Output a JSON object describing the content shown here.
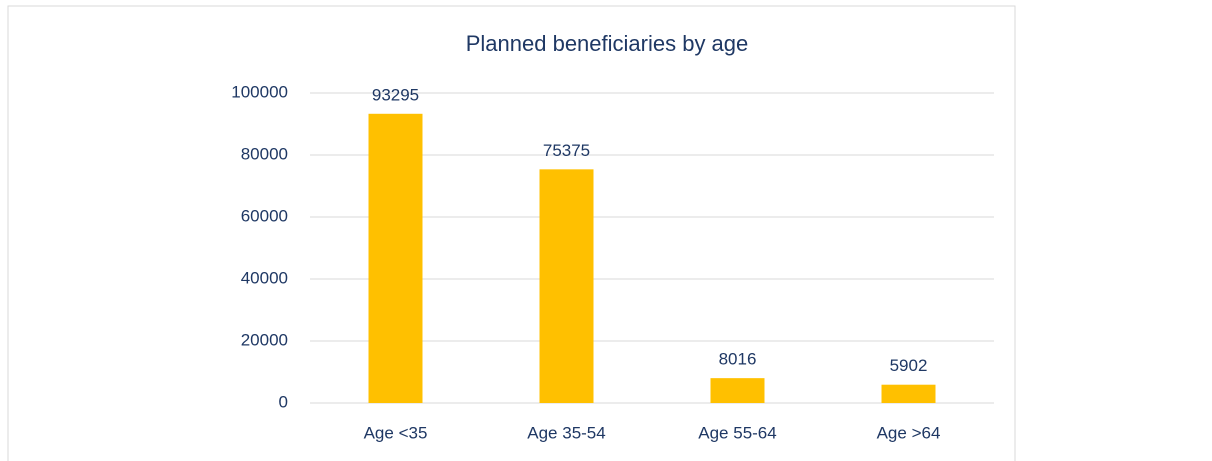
{
  "chart_data": {
    "type": "bar",
    "title": "Planned beneficiaries by age",
    "categories": [
      "Age <35",
      "Age 35-54",
      "Age 55-64",
      "Age >64"
    ],
    "values": [
      93295,
      75375,
      8016,
      5902
    ],
    "color": "#ffc000",
    "ylim": [
      0,
      100000
    ],
    "yticks": [
      0,
      20000,
      40000,
      60000,
      80000,
      100000
    ],
    "grid": true
  }
}
